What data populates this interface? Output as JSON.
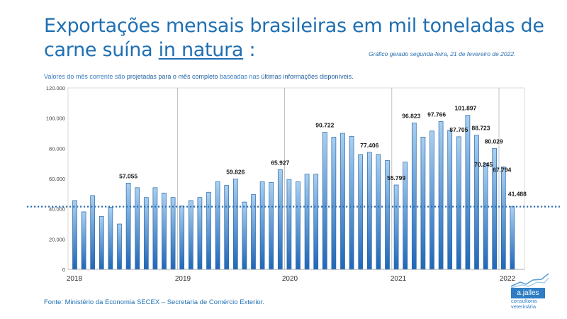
{
  "title": {
    "line1": "Exportações mensais brasileiras em mil toneladas de",
    "line2_prefix": "carne suína ",
    "line2_underlined": "in natura",
    "line2_suffix": " :"
  },
  "generated_note": "Gráfico gerado segunda-feira, 21 de fevereiro de 2022.",
  "subtitle": {
    "part1": "Valores do mês corrente são ",
    "part2": "projetadas para o mês completo",
    "part3": " baseadas nas ",
    "part4": "últimas informações disponíveis."
  },
  "source": "Fonte: Ministério da Economia SECEX – Secretaria de Comércio Exterior.",
  "logo": {
    "name": "a.jalles",
    "sub1": "consultoria",
    "sub2": "veterinária",
    "icon": "rising-line-icon"
  },
  "colors": {
    "bar_top": "#a9d0f0",
    "bar_bottom": "#1f67b8",
    "bar_stroke": "#2b66a8",
    "accent": "#1f6fb3",
    "ref_line": "#2f6fb0"
  },
  "chart_data": {
    "type": "bar",
    "title": "Exportações mensais brasileiras em mil toneladas de carne suína in natura :",
    "x_labels": [
      "2018",
      "2019",
      "2020",
      "2021",
      "2022"
    ],
    "y_ticks": [
      "0",
      "20.000",
      "40.000",
      "60.000",
      "80.000",
      "100.000",
      "120.000"
    ],
    "ylim": [
      0,
      120000
    ],
    "grid": "vertical lines at year boundaries",
    "reference_line": 41488,
    "series": [
      {
        "x": [
          "2018-01",
          "2018-02",
          "2018-03",
          "2018-04",
          "2018-05",
          "2018-06",
          "2018-07",
          "2018-08",
          "2018-09",
          "2018-10",
          "2018-11",
          "2018-12",
          "2019-01",
          "2019-02",
          "2019-03",
          "2019-04",
          "2019-05",
          "2019-06",
          "2019-07",
          "2019-08",
          "2019-09",
          "2019-10",
          "2019-11",
          "2019-12",
          "2020-01",
          "2020-02",
          "2020-03",
          "2020-04",
          "2020-05",
          "2020-06",
          "2020-07",
          "2020-08",
          "2020-09",
          "2020-10",
          "2020-11",
          "2020-12",
          "2021-01",
          "2021-02",
          "2021-03",
          "2021-04",
          "2021-05",
          "2021-06",
          "2021-07",
          "2021-08",
          "2021-09",
          "2021-10",
          "2021-11",
          "2021-12",
          "2022-01",
          "2022-02"
        ],
        "values": [
          45500,
          38000,
          48800,
          35000,
          41000,
          30000,
          57055,
          54000,
          47500,
          54000,
          50500,
          47500,
          42000,
          45500,
          47500,
          51000,
          58000,
          55500,
          59826,
          44500,
          49500,
          58000,
          57500,
          65927,
          59500,
          58000,
          63000,
          63000,
          90722,
          87500,
          90000,
          88000,
          76000,
          77406,
          76000,
          72000,
          55799,
          71000,
          96823,
          87500,
          91500,
          97766,
          92000,
          87705,
          101897,
          88723,
          70245,
          80029,
          67794,
          41488
        ]
      }
    ],
    "data_labels": [
      {
        "index": 6,
        "text": "57.055"
      },
      {
        "index": 18,
        "text": "59.826"
      },
      {
        "index": 23,
        "text": "65.927"
      },
      {
        "index": 28,
        "text": "90.722"
      },
      {
        "index": 33,
        "text": "77.406"
      },
      {
        "index": 36,
        "text": "55.799"
      },
      {
        "index": 38,
        "text": "96.823"
      },
      {
        "index": 41,
        "text": "97.766"
      },
      {
        "index": 43,
        "text": "87.705"
      },
      {
        "index": 44,
        "text": "101.897"
      },
      {
        "index": 45,
        "text": "88.723"
      },
      {
        "index": 46,
        "text": "70.245"
      },
      {
        "index": 47,
        "text": "80.029"
      },
      {
        "index": 48,
        "text": "67.794"
      },
      {
        "index": 49,
        "text": "41.488"
      }
    ]
  }
}
